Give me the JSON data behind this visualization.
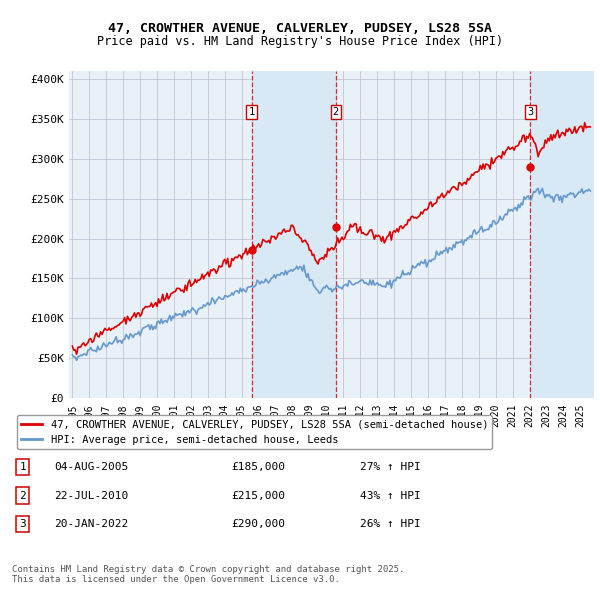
{
  "title_line1": "47, CROWTHER AVENUE, CALVERLEY, PUDSEY, LS28 5SA",
  "title_line2": "Price paid vs. HM Land Registry's House Price Index (HPI)",
  "ylabel_ticks": [
    "£0",
    "£50K",
    "£100K",
    "£150K",
    "£200K",
    "£250K",
    "£300K",
    "£350K",
    "£400K"
  ],
  "ylabel_values": [
    0,
    50000,
    100000,
    150000,
    200000,
    250000,
    300000,
    350000,
    400000
  ],
  "ylim": [
    0,
    410000
  ],
  "xlim_start": 1994.8,
  "xlim_end": 2025.8,
  "sale_color": "#dd0000",
  "hpi_color": "#6699cc",
  "shade_color": "#d8e8f5",
  "background_color": "#e8f0f8",
  "grid_color": "#bbbbcc",
  "purchases": [
    {
      "num": 1,
      "date_str": "04-AUG-2005",
      "date_x": 2005.58,
      "price": 185000,
      "pct": "27%",
      "dir": "↑"
    },
    {
      "num": 2,
      "date_str": "22-JUL-2010",
      "date_x": 2010.55,
      "price": 215000,
      "pct": "43%",
      "dir": "↑"
    },
    {
      "num": 3,
      "date_str": "20-JAN-2022",
      "date_x": 2022.05,
      "price": 290000,
      "pct": "26%",
      "dir": "↑"
    }
  ],
  "legend_label_sale": "47, CROWTHER AVENUE, CALVERLEY, PUDSEY, LS28 5SA (semi-detached house)",
  "legend_label_hpi": "HPI: Average price, semi-detached house, Leeds",
  "footnote": "Contains HM Land Registry data © Crown copyright and database right 2025.\nThis data is licensed under the Open Government Licence v3.0."
}
